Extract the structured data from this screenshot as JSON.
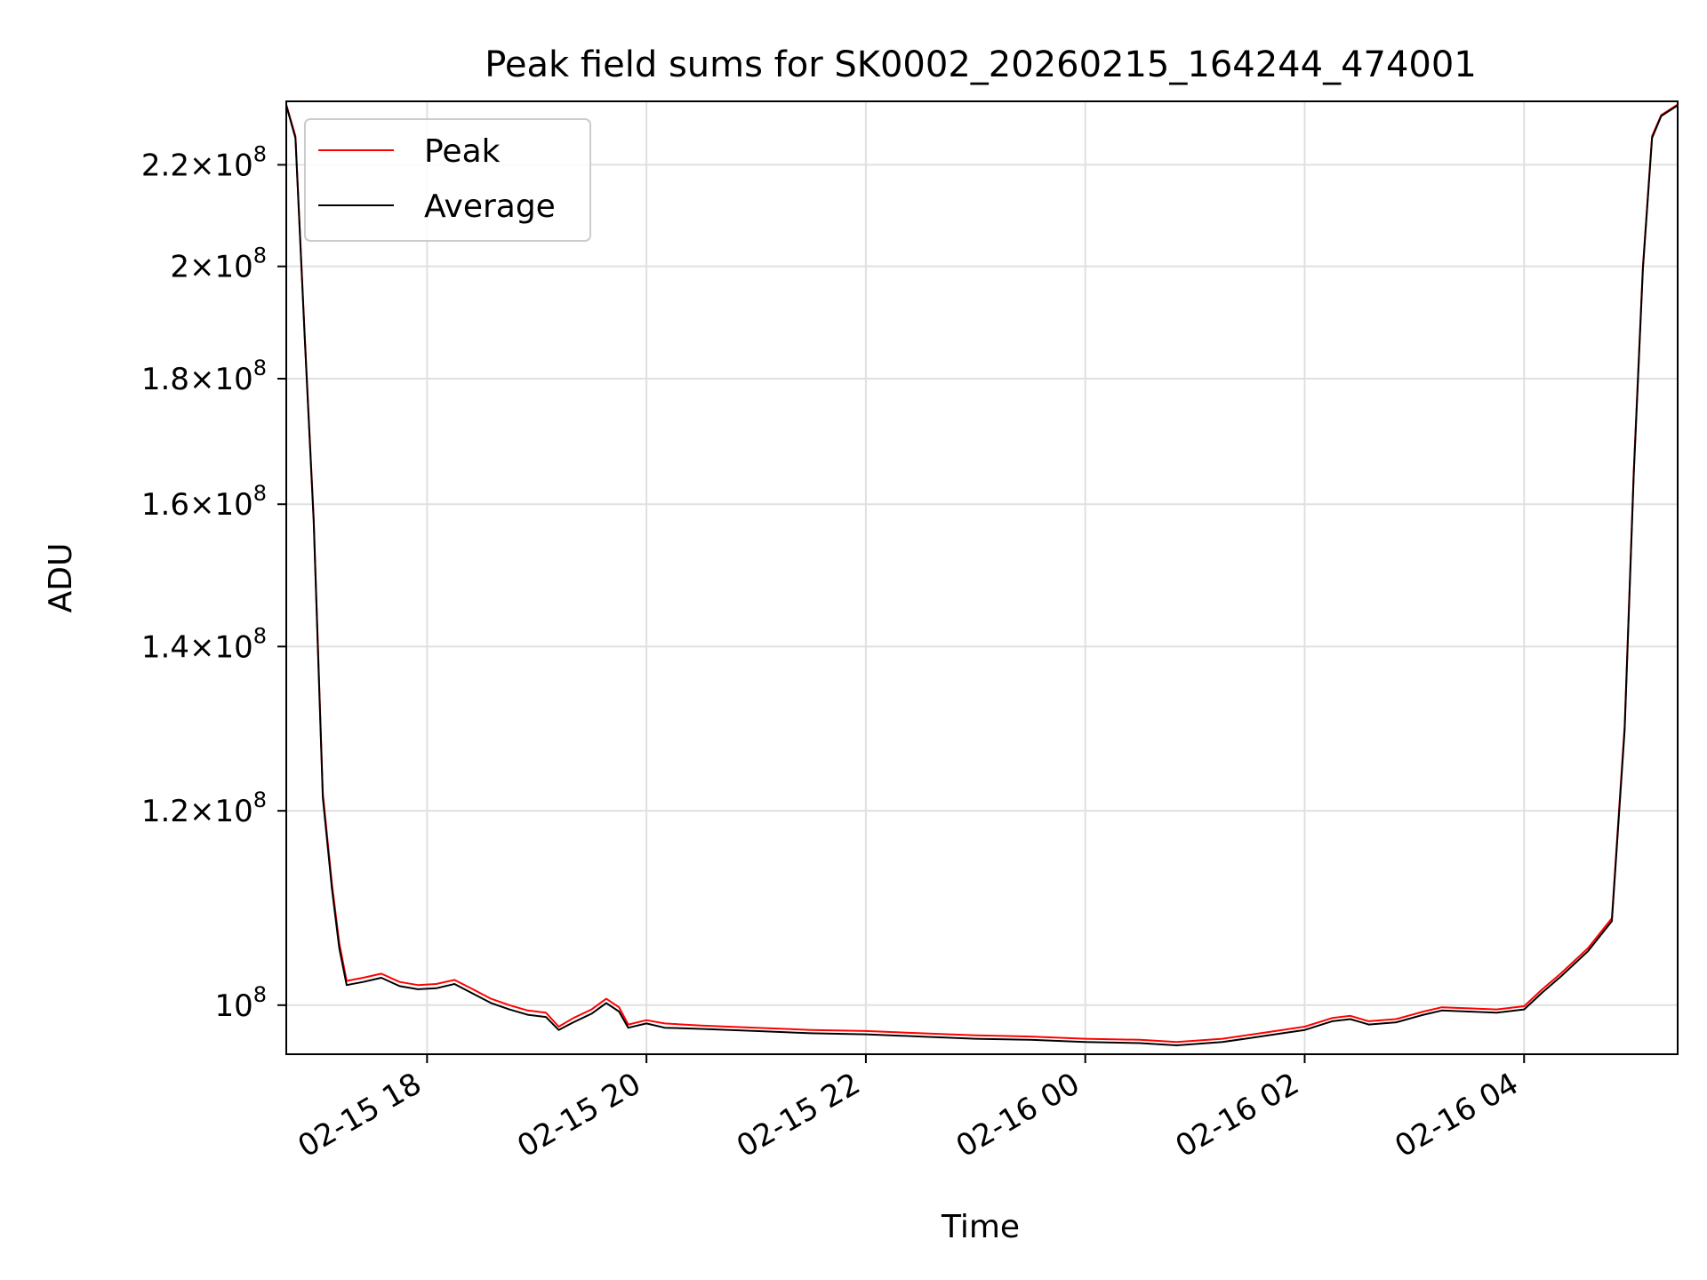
{
  "chart_data": {
    "type": "line",
    "title": "Peak field sums for SK0002_20260215_164244_474001",
    "xlabel": "Time",
    "ylabel": "ADU",
    "x_type": "datetime",
    "xlim": [
      "2026-02-15T16:43",
      "2026-02-16T05:24"
    ],
    "ylim": [
      95500000,
      233500000
    ],
    "y_scale": "log",
    "grid": true,
    "legend_position": "upper-left",
    "x_ticks": [
      {
        "value": "2026-02-15T18:00",
        "label": "02-15 18"
      },
      {
        "value": "2026-02-15T20:00",
        "label": "02-15 20"
      },
      {
        "value": "2026-02-15T22:00",
        "label": "02-15 22"
      },
      {
        "value": "2026-02-16T00:00",
        "label": "02-16 00"
      },
      {
        "value": "2026-02-16T02:00",
        "label": "02-16 02"
      },
      {
        "value": "2026-02-16T04:00",
        "label": "02-16 04"
      }
    ],
    "y_ticks": [
      {
        "value": 220000000,
        "mantissa": "2.2",
        "exp": "8"
      },
      {
        "value": 200000000,
        "mantissa": "2",
        "exp": "8"
      },
      {
        "value": 180000000,
        "mantissa": "1.8",
        "exp": "8"
      },
      {
        "value": 160000000,
        "mantissa": "1.6",
        "exp": "8"
      },
      {
        "value": 140000000,
        "mantissa": "1.4",
        "exp": "8"
      },
      {
        "value": 120000000,
        "mantissa": "1.2",
        "exp": "8"
      },
      {
        "value": 100000000,
        "mantissa": "",
        "exp": "8"
      }
    ],
    "series": [
      {
        "name": "Peak",
        "color": "#ff0000",
        "points": [
          [
            "2026-02-15T16:43",
            232800000
          ],
          [
            "2026-02-15T16:48",
            226000000
          ],
          [
            "2026-02-15T16:53",
            188000000
          ],
          [
            "2026-02-15T16:58",
            158000000
          ],
          [
            "2026-02-15T17:03",
            122000000
          ],
          [
            "2026-02-15T17:08",
            112000000
          ],
          [
            "2026-02-15T17:12",
            106000000
          ],
          [
            "2026-02-15T17:16",
            102300000
          ],
          [
            "2026-02-15T17:25",
            102600000
          ],
          [
            "2026-02-15T17:35",
            103000000
          ],
          [
            "2026-02-15T17:45",
            102200000
          ],
          [
            "2026-02-15T17:55",
            101900000
          ],
          [
            "2026-02-15T18:05",
            102000000
          ],
          [
            "2026-02-15T18:15",
            102400000
          ],
          [
            "2026-02-15T18:25",
            101500000
          ],
          [
            "2026-02-15T18:35",
            100600000
          ],
          [
            "2026-02-15T18:45",
            100000000
          ],
          [
            "2026-02-15T18:55",
            99500000
          ],
          [
            "2026-02-15T19:05",
            99300000
          ],
          [
            "2026-02-15T19:12",
            98000000
          ],
          [
            "2026-02-15T19:20",
            98800000
          ],
          [
            "2026-02-15T19:30",
            99600000
          ],
          [
            "2026-02-15T19:38",
            100600000
          ],
          [
            "2026-02-15T19:45",
            99800000
          ],
          [
            "2026-02-15T19:50",
            98200000
          ],
          [
            "2026-02-15T20:00",
            98600000
          ],
          [
            "2026-02-15T20:10",
            98300000
          ],
          [
            "2026-02-15T20:30",
            98100000
          ],
          [
            "2026-02-15T21:00",
            97900000
          ],
          [
            "2026-02-15T21:30",
            97700000
          ],
          [
            "2026-02-15T22:00",
            97600000
          ],
          [
            "2026-02-15T22:30",
            97400000
          ],
          [
            "2026-02-15T23:00",
            97200000
          ],
          [
            "2026-02-15T23:30",
            97100000
          ],
          [
            "2026-02-16T00:00",
            96900000
          ],
          [
            "2026-02-16T00:30",
            96800000
          ],
          [
            "2026-02-16T00:50",
            96600000
          ],
          [
            "2026-02-16T01:15",
            96900000
          ],
          [
            "2026-02-16T01:40",
            97500000
          ],
          [
            "2026-02-16T02:00",
            98000000
          ],
          [
            "2026-02-16T02:15",
            98800000
          ],
          [
            "2026-02-16T02:25",
            99000000
          ],
          [
            "2026-02-16T02:35",
            98500000
          ],
          [
            "2026-02-16T02:50",
            98700000
          ],
          [
            "2026-02-16T03:05",
            99400000
          ],
          [
            "2026-02-16T03:15",
            99800000
          ],
          [
            "2026-02-16T03:30",
            99700000
          ],
          [
            "2026-02-16T03:45",
            99600000
          ],
          [
            "2026-02-16T04:00",
            99900000
          ],
          [
            "2026-02-16T04:10",
            101500000
          ],
          [
            "2026-02-16T04:20",
            103000000
          ],
          [
            "2026-02-16T04:35",
            105500000
          ],
          [
            "2026-02-16T04:48",
            108500000
          ],
          [
            "2026-02-16T04:55",
            130000000
          ],
          [
            "2026-02-16T05:00",
            165000000
          ],
          [
            "2026-02-16T05:05",
            200000000
          ],
          [
            "2026-02-16T05:10",
            226000000
          ],
          [
            "2026-02-16T05:15",
            230500000
          ],
          [
            "2026-02-16T05:24",
            232800000
          ]
        ]
      },
      {
        "name": "Average",
        "color": "#000000",
        "points": [
          [
            "2026-02-15T16:43",
            232600000
          ],
          [
            "2026-02-15T16:48",
            225600000
          ],
          [
            "2026-02-15T16:53",
            187500000
          ],
          [
            "2026-02-15T16:58",
            157500000
          ],
          [
            "2026-02-15T17:03",
            121500000
          ],
          [
            "2026-02-15T17:08",
            111500000
          ],
          [
            "2026-02-15T17:12",
            105500000
          ],
          [
            "2026-02-15T17:16",
            101900000
          ],
          [
            "2026-02-15T17:25",
            102200000
          ],
          [
            "2026-02-15T17:35",
            102600000
          ],
          [
            "2026-02-15T17:45",
            101800000
          ],
          [
            "2026-02-15T17:55",
            101500000
          ],
          [
            "2026-02-15T18:05",
            101600000
          ],
          [
            "2026-02-15T18:15",
            102000000
          ],
          [
            "2026-02-15T18:25",
            101100000
          ],
          [
            "2026-02-15T18:35",
            100200000
          ],
          [
            "2026-02-15T18:45",
            99600000
          ],
          [
            "2026-02-15T18:55",
            99100000
          ],
          [
            "2026-02-15T19:05",
            98900000
          ],
          [
            "2026-02-15T19:12",
            97700000
          ],
          [
            "2026-02-15T19:20",
            98400000
          ],
          [
            "2026-02-15T19:30",
            99200000
          ],
          [
            "2026-02-15T19:38",
            100200000
          ],
          [
            "2026-02-15T19:45",
            99400000
          ],
          [
            "2026-02-15T19:50",
            97900000
          ],
          [
            "2026-02-15T20:00",
            98300000
          ],
          [
            "2026-02-15T20:10",
            97900000
          ],
          [
            "2026-02-15T20:30",
            97800000
          ],
          [
            "2026-02-15T21:00",
            97600000
          ],
          [
            "2026-02-15T21:30",
            97400000
          ],
          [
            "2026-02-15T22:00",
            97300000
          ],
          [
            "2026-02-15T22:30",
            97100000
          ],
          [
            "2026-02-15T23:00",
            96900000
          ],
          [
            "2026-02-15T23:30",
            96800000
          ],
          [
            "2026-02-16T00:00",
            96600000
          ],
          [
            "2026-02-16T00:30",
            96500000
          ],
          [
            "2026-02-16T00:50",
            96300000
          ],
          [
            "2026-02-16T01:15",
            96600000
          ],
          [
            "2026-02-16T01:40",
            97200000
          ],
          [
            "2026-02-16T02:00",
            97700000
          ],
          [
            "2026-02-16T02:15",
            98500000
          ],
          [
            "2026-02-16T02:25",
            98700000
          ],
          [
            "2026-02-16T02:35",
            98200000
          ],
          [
            "2026-02-16T02:50",
            98400000
          ],
          [
            "2026-02-16T03:05",
            99100000
          ],
          [
            "2026-02-16T03:15",
            99500000
          ],
          [
            "2026-02-16T03:30",
            99400000
          ],
          [
            "2026-02-16T03:45",
            99300000
          ],
          [
            "2026-02-16T04:00",
            99600000
          ],
          [
            "2026-02-16T04:10",
            101200000
          ],
          [
            "2026-02-16T04:20",
            102700000
          ],
          [
            "2026-02-16T04:35",
            105200000
          ],
          [
            "2026-02-16T04:48",
            108200000
          ],
          [
            "2026-02-16T04:55",
            129500000
          ],
          [
            "2026-02-16T05:00",
            164500000
          ],
          [
            "2026-02-16T05:05",
            199500000
          ],
          [
            "2026-02-16T05:10",
            225600000
          ],
          [
            "2026-02-16T05:15",
            230300000
          ],
          [
            "2026-02-16T05:24",
            232600000
          ]
        ]
      }
    ]
  }
}
